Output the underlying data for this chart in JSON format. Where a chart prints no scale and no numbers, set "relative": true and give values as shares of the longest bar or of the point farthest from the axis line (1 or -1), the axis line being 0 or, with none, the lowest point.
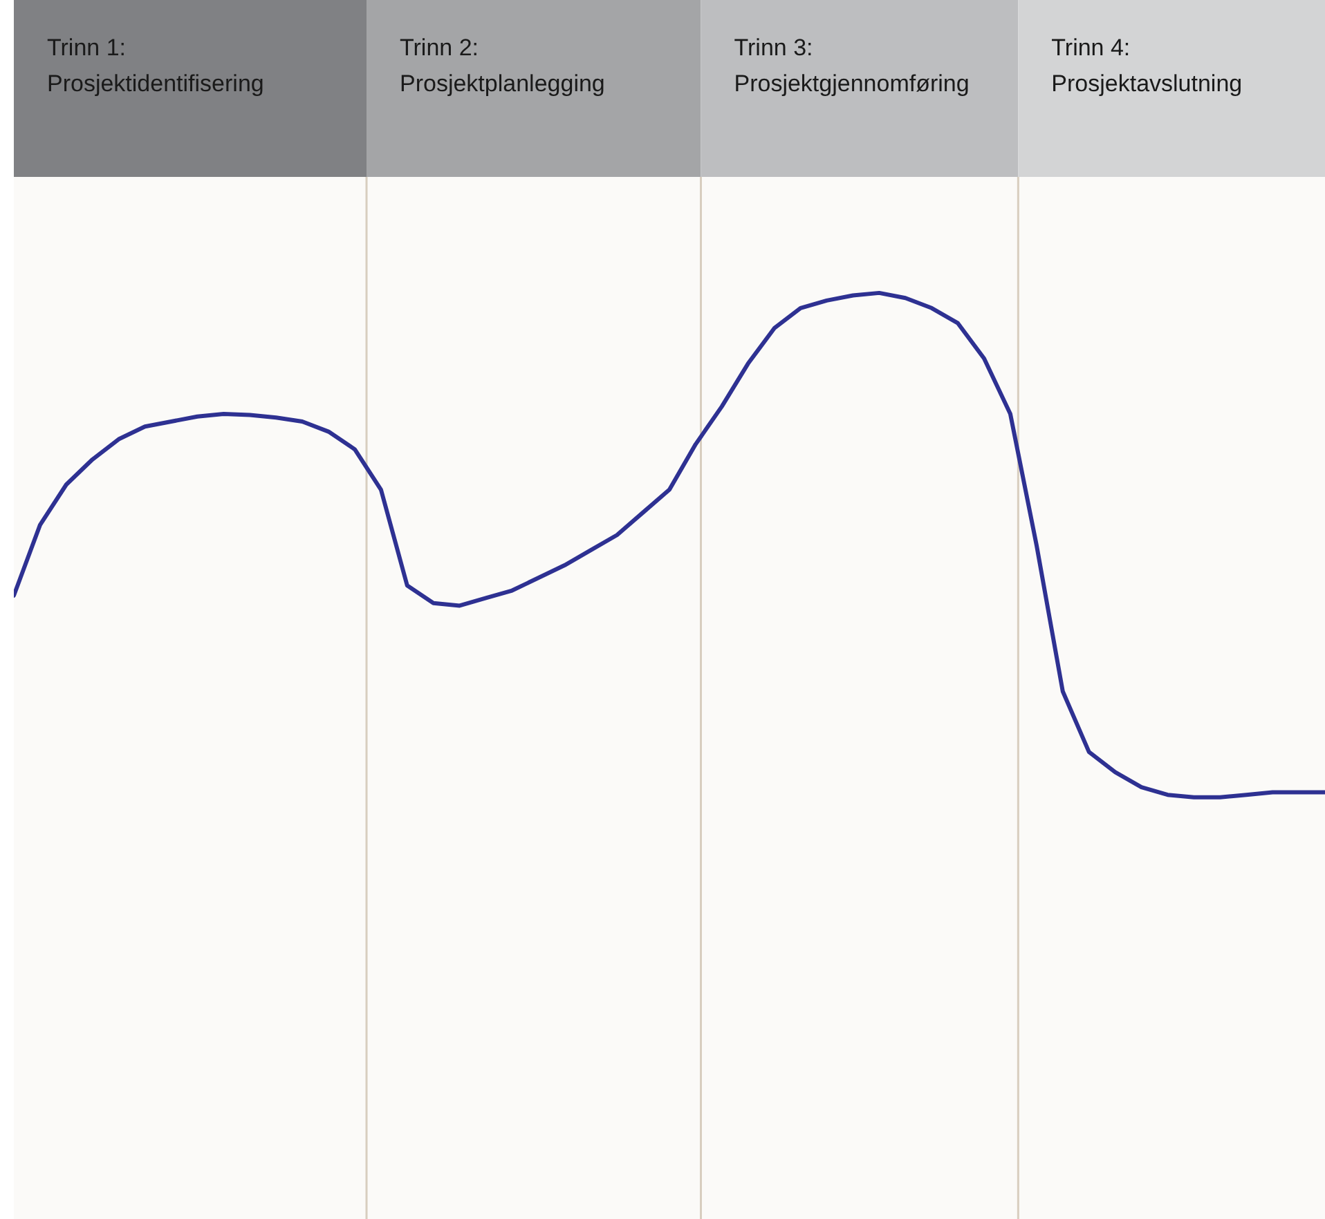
{
  "chart_data": {
    "type": "line",
    "relative": true,
    "categories": [
      null,
      null,
      null,
      null,
      null,
      null,
      null,
      null,
      null,
      null,
      null,
      null,
      null,
      null,
      null,
      null,
      null,
      null,
      null,
      null,
      null,
      null,
      null,
      null,
      null,
      null,
      null,
      null,
      null,
      null,
      null,
      null,
      null,
      null,
      null,
      null,
      null,
      null,
      null,
      null,
      null,
      null,
      null,
      null,
      null,
      null,
      null,
      null,
      null,
      null,
      null
    ],
    "tick_labels": false,
    "grid": false,
    "legend": false,
    "marker": "none",
    "line_style": "solid",
    "series": [
      {
        "color": "#2e3192",
        "values": [
          0.4,
          0.54,
          0.62,
          0.67,
          0.71,
          0.735,
          0.745,
          0.755,
          0.76,
          0.758,
          0.753,
          0.745,
          0.725,
          0.69,
          0.61,
          0.42,
          0.385,
          0.38,
          0.395,
          0.41,
          0.435,
          0.46,
          0.49,
          0.52,
          0.565,
          0.61,
          0.7,
          0.775,
          0.86,
          0.93,
          0.97,
          0.985,
          0.995,
          1,
          0.99,
          0.97,
          0.94,
          0.87,
          0.76,
          0.5,
          0.21,
          0.09,
          0.05,
          0.02,
          0.005,
          0,
          0,
          0.005,
          0.01,
          0.01,
          0.01
        ]
      }
    ],
    "annotations": [
      "Trinn 1:\nProsjektidentifisering",
      "Trinn 2:\nProsjektplanlegging",
      "Trinn 3:\nProsjektgjennomføring",
      "Trinn 4:\nProsjektavslutning"
    ]
  }
}
